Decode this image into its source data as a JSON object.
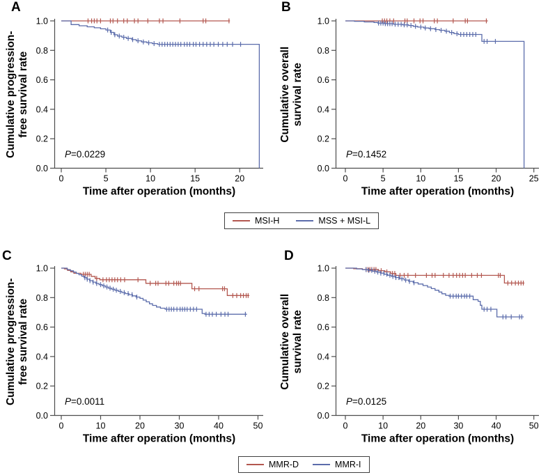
{
  "figure": {
    "colors": {
      "red": "#b3574f",
      "blue": "#5b6cab",
      "axis": "#4d4d4d",
      "legend_border": "#3f3f3f"
    },
    "legends": [
      {
        "items": [
          {
            "label": "MSI-H",
            "color_key": "red"
          },
          {
            "label": "MSS + MSI-L",
            "color_key": "blue"
          }
        ]
      },
      {
        "items": [
          {
            "label": "MMR-D",
            "color_key": "red"
          },
          {
            "label": "MMR-I",
            "color_key": "blue"
          }
        ]
      }
    ]
  },
  "chart_data": [
    {
      "panel_label": "A",
      "type": "line",
      "subtype": "kaplan-meier-step",
      "xlabel": "Time after operation (months)",
      "ylabel_lines": [
        "Cumulative progression-",
        "free survival rate"
      ],
      "p_italic": "P",
      "p_text": "=0.0229",
      "xticks": [
        0,
        5,
        10,
        15,
        20
      ],
      "x_axis_end": 22.4,
      "yticks": [
        0,
        0.2,
        0.4,
        0.6,
        0.8,
        1
      ],
      "ylim": [
        0,
        1
      ],
      "grid": false,
      "series": [
        {
          "name": "MSI-H",
          "color_key": "red",
          "points": [
            [
              0,
              1.0
            ],
            [
              18.9,
              1.0
            ]
          ],
          "censors": [
            3.0,
            3.4,
            3.7,
            4.0,
            4.4,
            5.5,
            5.8,
            6.3,
            7.0,
            7.4,
            8.2,
            8.6,
            9.7,
            11.0,
            11.4,
            13.3,
            15.9,
            16.2,
            18.8
          ]
        },
        {
          "name": "MSS + MSI-L",
          "color_key": "blue",
          "points": [
            [
              0,
              1.0
            ],
            [
              1.1,
              0.975
            ],
            [
              2.0,
              0.967
            ],
            [
              2.9,
              0.96
            ],
            [
              3.7,
              0.953
            ],
            [
              4.4,
              0.946
            ],
            [
              5.0,
              0.938
            ],
            [
              5.5,
              0.922
            ],
            [
              5.9,
              0.906
            ],
            [
              6.3,
              0.897
            ],
            [
              6.8,
              0.889
            ],
            [
              7.3,
              0.881
            ],
            [
              7.9,
              0.873
            ],
            [
              8.4,
              0.865
            ],
            [
              9.0,
              0.857
            ],
            [
              9.6,
              0.851
            ],
            [
              10.2,
              0.846
            ],
            [
              10.8,
              0.841
            ],
            [
              22.2,
              0.841
            ],
            [
              22.2,
              0
            ]
          ],
          "censors": [
            5.2,
            5.6,
            6.0,
            6.5,
            7.0,
            7.5,
            8.0,
            8.6,
            9.2,
            9.8,
            10.4,
            11.0,
            11.3,
            11.6,
            11.9,
            12.2,
            12.5,
            12.8,
            13.1,
            13.4,
            13.8,
            14.1,
            14.4,
            14.8,
            15.1,
            15.5,
            15.9,
            16.3,
            16.7,
            17.1,
            17.6,
            18.1,
            18.6,
            19.2,
            20.1
          ]
        }
      ]
    },
    {
      "panel_label": "B",
      "type": "line",
      "subtype": "kaplan-meier-step",
      "xlabel": "Time after operation (months)",
      "ylabel_lines": [
        "Cumulative overall",
        "survival rate"
      ],
      "p_italic": "P",
      "p_text": "=0.1452",
      "xticks": [
        0,
        5,
        10,
        15,
        20,
        25
      ],
      "x_axis_end": 25.4,
      "yticks": [
        0,
        0.2,
        0.4,
        0.6,
        0.8,
        1
      ],
      "ylim": [
        0,
        1
      ],
      "grid": false,
      "series": [
        {
          "name": "MSI-H",
          "color_key": "red",
          "points": [
            [
              0,
              1.0
            ],
            [
              18.9,
              1.0
            ]
          ],
          "censors": [
            4.9,
            5.2,
            5.5,
            5.9,
            6.4,
            7.9,
            8.2,
            9.1,
            9.9,
            10.3,
            11.8,
            12.2,
            14.3,
            15.9,
            16.2,
            18.7
          ]
        },
        {
          "name": "MSS + MSI-L",
          "color_key": "blue",
          "points": [
            [
              0,
              1.0
            ],
            [
              1.2,
              0.997
            ],
            [
              2.5,
              0.993
            ],
            [
              3.8,
              0.989
            ],
            [
              4.3,
              0.985
            ],
            [
              5.2,
              0.981
            ],
            [
              6.4,
              0.977
            ],
            [
              7.6,
              0.973
            ],
            [
              8.4,
              0.969
            ],
            [
              9.0,
              0.963
            ],
            [
              9.6,
              0.958
            ],
            [
              10.4,
              0.952
            ],
            [
              11.1,
              0.947
            ],
            [
              11.9,
              0.941
            ],
            [
              12.5,
              0.936
            ],
            [
              13.2,
              0.93
            ],
            [
              13.8,
              0.921
            ],
            [
              14.4,
              0.913
            ],
            [
              15.0,
              0.908
            ],
            [
              17.9,
              0.908
            ],
            [
              18.1,
              0.861
            ],
            [
              23.7,
              0.861
            ],
            [
              23.7,
              0
            ]
          ],
          "censors": [
            4.4,
            4.7,
            5.0,
            5.3,
            5.6,
            5.9,
            6.2,
            6.6,
            7.0,
            7.4,
            7.8,
            8.2,
            8.7,
            9.3,
            10.0,
            10.6,
            11.3,
            12.0,
            12.7,
            13.4,
            14.1,
            14.8,
            15.3,
            15.7,
            16.1,
            16.5,
            16.9,
            17.3,
            18.4,
            18.8,
            19.9
          ]
        }
      ]
    },
    {
      "panel_label": "C",
      "type": "line",
      "subtype": "kaplan-meier-step",
      "xlabel": "Time after operation (months)",
      "ylabel_lines": [
        "Cumulative progression-",
        "free survival rate"
      ],
      "p_italic": "P",
      "p_text": "=0.0011",
      "xticks": [
        0,
        10,
        20,
        30,
        40,
        50
      ],
      "x_axis_end": 50.8,
      "yticks": [
        0,
        0.2,
        0.4,
        0.6,
        0.8,
        1
      ],
      "ylim": [
        0,
        1
      ],
      "grid": false,
      "series": [
        {
          "name": "MMR-D",
          "color_key": "red",
          "points": [
            [
              0,
              1.0
            ],
            [
              0.8,
              0.995
            ],
            [
              1.6,
              0.985
            ],
            [
              2.4,
              0.975
            ],
            [
              3.2,
              0.965
            ],
            [
              5.0,
              0.958
            ],
            [
              7.6,
              0.944
            ],
            [
              8.6,
              0.93
            ],
            [
              9.8,
              0.921
            ],
            [
              21.2,
              0.921
            ],
            [
              21.5,
              0.897
            ],
            [
              32.9,
              0.897
            ],
            [
              33.2,
              0.86
            ],
            [
              41.9,
              0.86
            ],
            [
              42.2,
              0.814
            ],
            [
              47.8,
              0.814
            ]
          ],
          "censors": [
            5.6,
            6.1,
            6.6,
            7.1,
            9.0,
            10.6,
            11.5,
            12.2,
            12.9,
            13.6,
            14.3,
            15.1,
            16.1,
            19.5,
            22.6,
            24.0,
            24.6,
            26.6,
            27.3,
            28.6,
            29.3,
            29.8,
            30.3,
            33.9,
            35.0,
            41.0,
            41.5,
            43.6,
            44.6,
            45.6,
            46.3,
            47.0,
            47.5
          ]
        },
        {
          "name": "MMR-I",
          "color_key": "blue",
          "points": [
            [
              0,
              1.0
            ],
            [
              1.5,
              0.99
            ],
            [
              2.3,
              0.982
            ],
            [
              3.1,
              0.973
            ],
            [
              3.8,
              0.964
            ],
            [
              4.5,
              0.955
            ],
            [
              5.2,
              0.945
            ],
            [
              5.8,
              0.935
            ],
            [
              6.5,
              0.925
            ],
            [
              7.2,
              0.915
            ],
            [
              8.0,
              0.905
            ],
            [
              8.8,
              0.896
            ],
            [
              9.6,
              0.888
            ],
            [
              10.4,
              0.88
            ],
            [
              11.2,
              0.872
            ],
            [
              12.0,
              0.864
            ],
            [
              12.8,
              0.857
            ],
            [
              13.6,
              0.85
            ],
            [
              14.5,
              0.842
            ],
            [
              15.4,
              0.834
            ],
            [
              16.3,
              0.827
            ],
            [
              17.2,
              0.82
            ],
            [
              18.1,
              0.812
            ],
            [
              19.0,
              0.804
            ],
            [
              20.0,
              0.795
            ],
            [
              20.8,
              0.783
            ],
            [
              21.6,
              0.771
            ],
            [
              22.4,
              0.758
            ],
            [
              23.2,
              0.747
            ],
            [
              24.2,
              0.736
            ],
            [
              25.2,
              0.728
            ],
            [
              26.4,
              0.721
            ],
            [
              35.5,
              0.721
            ],
            [
              35.8,
              0.692
            ],
            [
              36.5,
              0.687
            ],
            [
              47.2,
              0.687
            ]
          ],
          "censors": [
            6.0,
            6.6,
            7.3,
            8.1,
            9.0,
            10.0,
            10.8,
            11.6,
            12.4,
            13.2,
            14.0,
            15.0,
            16.0,
            17.0,
            18.0,
            19.2,
            26.8,
            27.4,
            28.0,
            28.6,
            29.4,
            30.2,
            30.8,
            31.4,
            32.0,
            32.8,
            33.6,
            34.4,
            36.8,
            37.6,
            38.4,
            39.4,
            40.6,
            41.6,
            42.4,
            46.8
          ]
        }
      ]
    },
    {
      "panel_label": "D",
      "type": "line",
      "subtype": "kaplan-meier-step",
      "xlabel": "Time after operation (months)",
      "ylabel_lines": [
        "Cumulative overall",
        "survival rate"
      ],
      "p_italic": "P",
      "p_text": "=0.0125",
      "xticks": [
        0,
        10,
        20,
        30,
        40,
        50
      ],
      "x_axis_end": 50.8,
      "yticks": [
        0,
        0.2,
        0.4,
        0.6,
        0.8,
        1
      ],
      "ylim": [
        0,
        1
      ],
      "grid": false,
      "series": [
        {
          "name": "MMR-D",
          "color_key": "red",
          "points": [
            [
              0,
              1.0
            ],
            [
              2.2,
              0.996
            ],
            [
              4.5,
              0.991
            ],
            [
              8.8,
              0.983
            ],
            [
              10.5,
              0.975
            ],
            [
              12.0,
              0.964
            ],
            [
              13.4,
              0.951
            ],
            [
              41.9,
              0.951
            ],
            [
              42.2,
              0.899
            ],
            [
              47.5,
              0.899
            ]
          ],
          "censors": [
            5.5,
            6.0,
            6.5,
            7.0,
            7.6,
            8.1,
            9.5,
            11.0,
            12.5,
            13.1,
            14.5,
            15.6,
            16.6,
            18.6,
            21.5,
            23.0,
            23.8,
            26.0,
            27.5,
            28.6,
            29.5,
            30.3,
            31.1,
            31.8,
            33.5,
            35.0,
            36.1,
            40.6,
            41.1,
            43.1,
            44.1,
            45.1,
            45.9,
            46.6,
            47.2
          ]
        },
        {
          "name": "MMR-I",
          "color_key": "blue",
          "points": [
            [
              0,
              1.0
            ],
            [
              3.0,
              0.995
            ],
            [
              4.5,
              0.99
            ],
            [
              6.0,
              0.985
            ],
            [
              7.2,
              0.979
            ],
            [
              8.3,
              0.973
            ],
            [
              9.3,
              0.966
            ],
            [
              10.3,
              0.959
            ],
            [
              11.2,
              0.952
            ],
            [
              12.2,
              0.944
            ],
            [
              13.2,
              0.936
            ],
            [
              14.4,
              0.928
            ],
            [
              15.6,
              0.919
            ],
            [
              16.8,
              0.91
            ],
            [
              18.0,
              0.901
            ],
            [
              19.3,
              0.892
            ],
            [
              20.6,
              0.882
            ],
            [
              21.8,
              0.872
            ],
            [
              22.8,
              0.861
            ],
            [
              23.8,
              0.85
            ],
            [
              24.8,
              0.838
            ],
            [
              25.6,
              0.826
            ],
            [
              26.6,
              0.815
            ],
            [
              27.5,
              0.81
            ],
            [
              33.5,
              0.81
            ],
            [
              33.9,
              0.786
            ],
            [
              35.2,
              0.775
            ],
            [
              35.8,
              0.748
            ],
            [
              36.2,
              0.721
            ],
            [
              39.8,
              0.721
            ],
            [
              40.2,
              0.669
            ],
            [
              47.3,
              0.669
            ]
          ],
          "censors": [
            5.5,
            6.2,
            7.0,
            7.8,
            8.6,
            9.4,
            10.2,
            11.0,
            11.8,
            12.6,
            13.4,
            14.2,
            15.0,
            16.0,
            17.0,
            18.2,
            27.8,
            28.6,
            29.4,
            30.0,
            30.8,
            31.6,
            32.2,
            33.0,
            36.8,
            37.6,
            38.6,
            41.8,
            42.6,
            44.0,
            46.2,
            46.8
          ]
        }
      ]
    }
  ]
}
